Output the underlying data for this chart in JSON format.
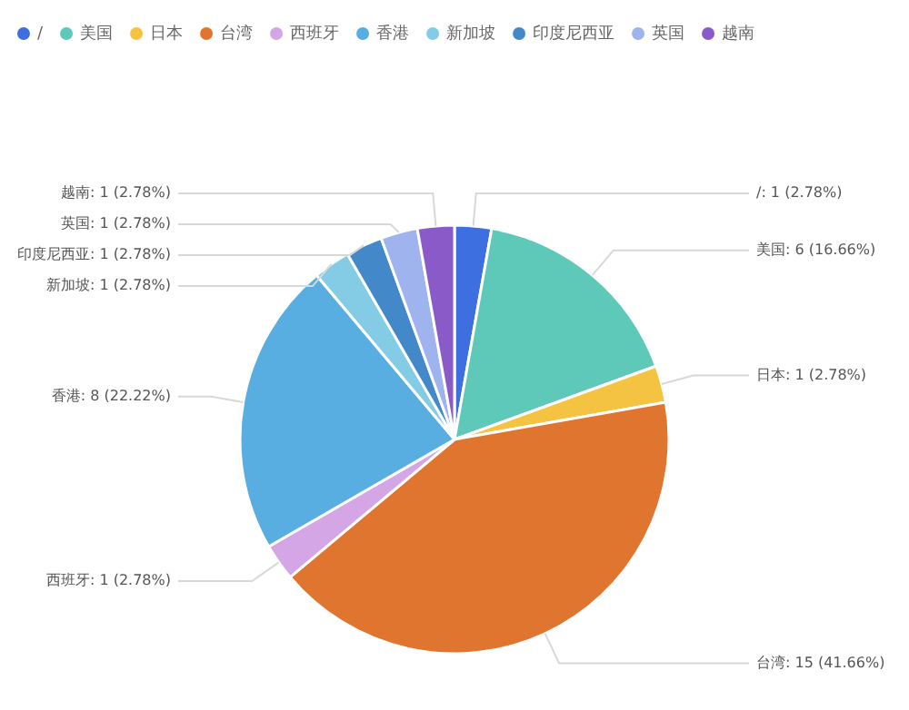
{
  "chart_data": {
    "type": "pie",
    "categories": [
      "/",
      "美国",
      "日本",
      "台湾",
      "西班牙",
      "香港",
      "新加坡",
      "印度尼西亚",
      "英国",
      "越南"
    ],
    "values": [
      1,
      6,
      1,
      15,
      1,
      8,
      1,
      1,
      1,
      1
    ],
    "value_labels": [
      "/: 1 (2.78%)",
      "美国: 6 (16.66%)",
      "日本: 1 (2.78%)",
      "台湾: 15 (41.66%)",
      "西班牙: 1 (2.78%)",
      "香港: 8 (22.22%)",
      "新加坡: 1 (2.78%)",
      "印度尼西亚: 1 (2.78%)",
      "英国: 1 (2.78%)",
      "越南: 1 (2.78%)"
    ],
    "colors": [
      "#3e6fe0",
      "#5ec9b9",
      "#f5c342",
      "#e07530",
      "#d5a6e6",
      "#58aee0",
      "#84cbe6",
      "#4388c8",
      "#9fb4ef",
      "#8a5ac9"
    ],
    "legend": "top left"
  }
}
